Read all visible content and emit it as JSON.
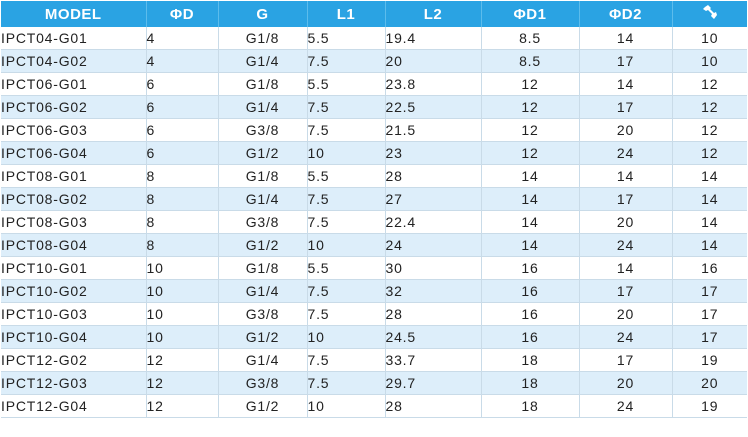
{
  "table": {
    "headers": {
      "model": "MODEL",
      "d": "ΦD",
      "g": "G",
      "l1": "L1",
      "l2": "L2",
      "d1": "ΦD1",
      "d2": "ΦD2",
      "wrench": "wrench-icon"
    },
    "header_bg": "#2aa3e3",
    "stripe_bg": "#ddeefa",
    "rows": [
      {
        "model": "IPCT04-G01",
        "d": "4",
        "g": "G1/8",
        "l1": "5.5",
        "l2": "19.4",
        "d1": "8.5",
        "d2": "14",
        "wrench": "10"
      },
      {
        "model": "IPCT04-G02",
        "d": "4",
        "g": "G1/4",
        "l1": "7.5",
        "l2": "20",
        "d1": "8.5",
        "d2": "17",
        "wrench": "10"
      },
      {
        "model": "IPCT06-G01",
        "d": "6",
        "g": "G1/8",
        "l1": "5.5",
        "l2": "23.8",
        "d1": "12",
        "d2": "14",
        "wrench": "12"
      },
      {
        "model": "IPCT06-G02",
        "d": "6",
        "g": "G1/4",
        "l1": "7.5",
        "l2": "22.5",
        "d1": "12",
        "d2": "17",
        "wrench": "12"
      },
      {
        "model": "IPCT06-G03",
        "d": "6",
        "g": "G3/8",
        "l1": "7.5",
        "l2": "21.5",
        "d1": "12",
        "d2": "20",
        "wrench": "12"
      },
      {
        "model": "IPCT06-G04",
        "d": "6",
        "g": "G1/2",
        "l1": "10",
        "l2": "23",
        "d1": "12",
        "d2": "24",
        "wrench": "12"
      },
      {
        "model": "IPCT08-G01",
        "d": "8",
        "g": "G1/8",
        "l1": "5.5",
        "l2": "28",
        "d1": "14",
        "d2": "14",
        "wrench": "14"
      },
      {
        "model": "IPCT08-G02",
        "d": "8",
        "g": "G1/4",
        "l1": "7.5",
        "l2": "27",
        "d1": "14",
        "d2": "17",
        "wrench": "14"
      },
      {
        "model": "IPCT08-G03",
        "d": "8",
        "g": "G3/8",
        "l1": "7.5",
        "l2": "22.4",
        "d1": "14",
        "d2": "20",
        "wrench": "14"
      },
      {
        "model": "IPCT08-G04",
        "d": "8",
        "g": "G1/2",
        "l1": "10",
        "l2": "24",
        "d1": "14",
        "d2": "24",
        "wrench": "14"
      },
      {
        "model": "IPCT10-G01",
        "d": "10",
        "g": "G1/8",
        "l1": "5.5",
        "l2": "30",
        "d1": "16",
        "d2": "14",
        "wrench": "16"
      },
      {
        "model": "IPCT10-G02",
        "d": "10",
        "g": "G1/4",
        "l1": "7.5",
        "l2": "32",
        "d1": "16",
        "d2": "17",
        "wrench": "17"
      },
      {
        "model": "IPCT10-G03",
        "d": "10",
        "g": "G3/8",
        "l1": "7.5",
        "l2": "28",
        "d1": "16",
        "d2": "20",
        "wrench": "17"
      },
      {
        "model": "IPCT10-G04",
        "d": "10",
        "g": "G1/2",
        "l1": "10",
        "l2": "24.5",
        "d1": "16",
        "d2": "24",
        "wrench": "17"
      },
      {
        "model": "IPCT12-G02",
        "d": "12",
        "g": "G1/4",
        "l1": "7.5",
        "l2": "33.7",
        "d1": "18",
        "d2": "17",
        "wrench": "19"
      },
      {
        "model": "IPCT12-G03",
        "d": "12",
        "g": "G3/8",
        "l1": "7.5",
        "l2": "29.7",
        "d1": "18",
        "d2": "20",
        "wrench": "20"
      },
      {
        "model": "IPCT12-G04",
        "d": "12",
        "g": "G1/2",
        "l1": "10",
        "l2": "28",
        "d1": "18",
        "d2": "24",
        "wrench": "19"
      }
    ]
  }
}
